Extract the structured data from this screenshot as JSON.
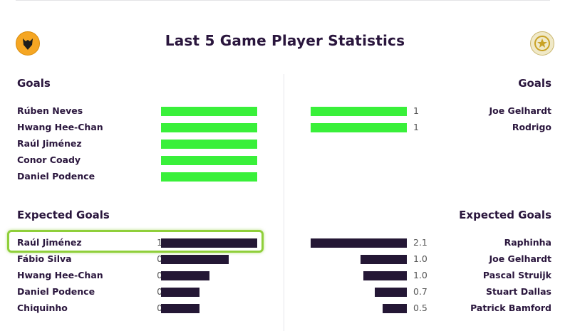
{
  "title": "Last 5 Game Player Statistics",
  "icons": {
    "home_crest": "wolves-crest-icon",
    "away_crest": "leeds-crest-icon"
  },
  "colors": {
    "goal_bar": "#39f03a",
    "xg_bar": "#241735",
    "highlight": "#8fcf3a",
    "title": "#2a163d"
  },
  "goals_label_left": "Goals",
  "goals_label_right": "Goals",
  "xg_label_left": "Expected Goals",
  "xg_label_right": "Expected Goals",
  "home_goals": [
    {
      "name": "Rúben Neves",
      "value": "1",
      "fraction": 1.0
    },
    {
      "name": "Hwang Hee-Chan",
      "value": "1",
      "fraction": 1.0
    },
    {
      "name": "Raúl Jiménez",
      "value": "1",
      "fraction": 1.0
    },
    {
      "name": "Conor Coady",
      "value": "1",
      "fraction": 1.0
    },
    {
      "name": "Daniel Podence",
      "value": "1",
      "fraction": 1.0
    }
  ],
  "away_goals": [
    {
      "name": "Joe Gelhardt",
      "value": "1",
      "fraction": 1.0
    },
    {
      "name": "Rodrigo",
      "value": "1",
      "fraction": 1.0
    }
  ],
  "home_xg": [
    {
      "name": "Raúl Jiménez",
      "value": "1.0",
      "fraction": 1.0
    },
    {
      "name": "Fábio Silva",
      "value": "0.7",
      "fraction": 0.7
    },
    {
      "name": "Hwang Hee-Chan",
      "value": "0.5",
      "fraction": 0.5
    },
    {
      "name": "Daniel Podence",
      "value": "0.4",
      "fraction": 0.4
    },
    {
      "name": "Chiquinho",
      "value": "0.4",
      "fraction": 0.4
    }
  ],
  "away_xg": [
    {
      "name": "Raphinha",
      "value": "2.1",
      "fraction": 1.0
    },
    {
      "name": "Joe Gelhardt",
      "value": "1.0",
      "fraction": 0.48
    },
    {
      "name": "Pascal Struijk",
      "value": "1.0",
      "fraction": 0.45
    },
    {
      "name": "Stuart Dallas",
      "value": "0.7",
      "fraction": 0.33
    },
    {
      "name": "Patrick Bamford",
      "value": "0.5",
      "fraction": 0.25
    }
  ]
}
